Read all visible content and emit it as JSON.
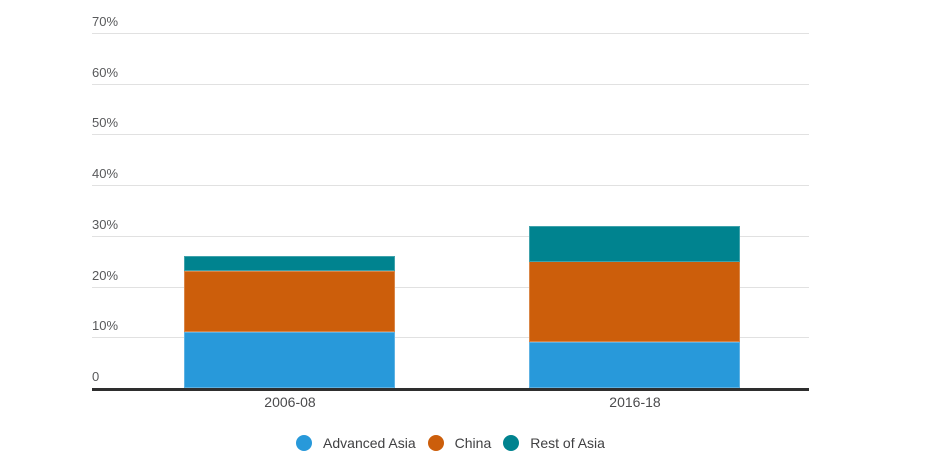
{
  "chart_data": {
    "type": "bar",
    "variant": "stacked-column",
    "title": "",
    "xlabel": "",
    "ylabel": "",
    "unit": "%",
    "categories": [
      "2006-08",
      "2016-18"
    ],
    "series": [
      {
        "name": "Advanced Asia",
        "color": "#2899DA",
        "values": [
          11,
          9
        ]
      },
      {
        "name": "China",
        "color": "#CC5E0B",
        "values": [
          12,
          16
        ]
      },
      {
        "name": "Rest of Asia",
        "color": "#00838F",
        "values": [
          3,
          7
        ]
      }
    ],
    "stack_totals": [
      26,
      32
    ],
    "ylim": [
      0,
      70
    ],
    "y_ticks": [
      {
        "value": 0,
        "label": "0"
      },
      {
        "value": 10,
        "label": "10%"
      },
      {
        "value": 20,
        "label": "20%"
      },
      {
        "value": 30,
        "label": "30%"
      },
      {
        "value": 40,
        "label": "40%"
      },
      {
        "value": 50,
        "label": "50%"
      },
      {
        "value": 60,
        "label": "60%"
      },
      {
        "value": 70,
        "label": "70%"
      }
    ],
    "grid": true,
    "legend_position": "bottom",
    "legend": [
      "Advanced Asia",
      "China",
      "Rest of Asia"
    ]
  },
  "style": {
    "background": "#FFFFFF",
    "axis_line_color": "#2E2E2E",
    "gridline_color": "#E1E1E1",
    "tick_text_color": "#58595B",
    "category_text_color": "#4B4B4D",
    "legend_text_color": "#404042"
  }
}
